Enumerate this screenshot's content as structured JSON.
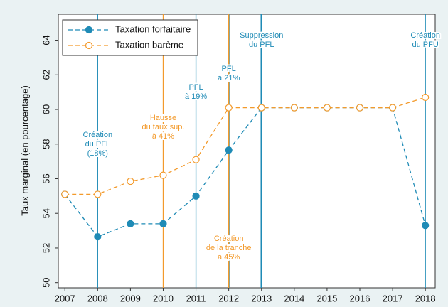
{
  "chart_data": {
    "type": "line",
    "y_label": "Taux marginal (en pourcentage)",
    "x": [
      2007,
      2008,
      2009,
      2010,
      2011,
      2012,
      2013,
      2014,
      2015,
      2016,
      2017,
      2018
    ],
    "series": [
      {
        "name": "Taxation forfaitaire",
        "color": "#1f8bb6",
        "marker": "filled",
        "values": [
          55.1,
          52.65,
          53.4,
          53.4,
          55.0,
          57.65,
          60.1,
          60.1,
          60.1,
          60.1,
          60.1,
          53.3
        ]
      },
      {
        "name": "Taxation barème",
        "color": "#f39a2b",
        "marker": "hollow",
        "values": [
          55.1,
          55.1,
          55.85,
          56.2,
          57.1,
          60.1,
          60.1,
          60.1,
          60.1,
          60.1,
          60.1,
          60.7
        ]
      }
    ],
    "xlim": [
      2006.8,
      2018.3
    ],
    "xticks": [
      2007,
      2008,
      2009,
      2010,
      2011,
      2012,
      2013,
      2014,
      2015,
      2016,
      2017,
      2018
    ],
    "ylim": [
      49.7,
      65.5
    ],
    "yticks": [
      50,
      52,
      54,
      56,
      58,
      60,
      62,
      64
    ],
    "legend": "upper left",
    "annotations": [
      {
        "x": 2008,
        "color": "#1f8bb6",
        "lines": [
          "Création",
          "du PFL",
          "(18%)"
        ]
      },
      {
        "x": 2010,
        "color": "#f39a2b",
        "lines": [
          "Hausse",
          "du taux sup.",
          "à 41%"
        ]
      },
      {
        "x": 2011,
        "color": "#1f8bb6",
        "lines": [
          "PFL",
          "à 19%"
        ]
      },
      {
        "x": 2012,
        "color": "#1f8bb6",
        "lines": [
          "PFL",
          "à 21%"
        ]
      },
      {
        "x": 2012,
        "color": "#f39a2b",
        "lines": [
          "Création",
          "de la tranche",
          "à 45%"
        ]
      },
      {
        "x": 2013,
        "color": "#1f8bb6",
        "lines": [
          "Suppression",
          "du PFL"
        ]
      },
      {
        "x": 2018,
        "color": "#1f8bb6",
        "lines": [
          "Création",
          "du PFU"
        ]
      }
    ]
  }
}
